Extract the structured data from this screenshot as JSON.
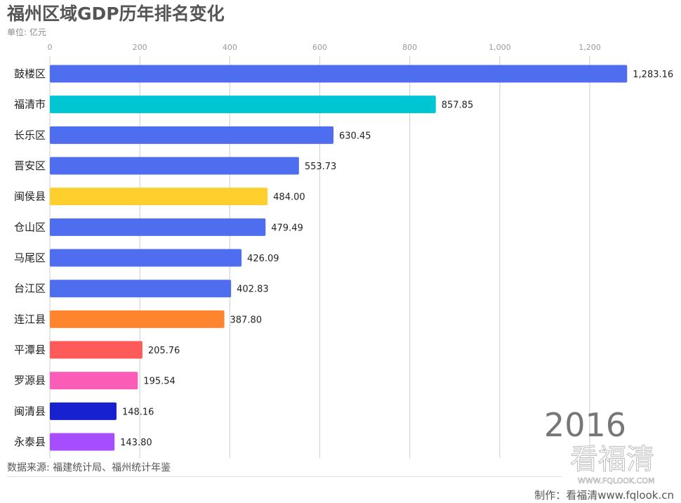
{
  "title": "福州区域GDP历年排名变化",
  "unit": "单位: 亿元",
  "year": "2016",
  "source": "数据来源: 福建统计局、福州统计年鉴",
  "credit": "制作：看福清www.fqlook.cn",
  "logo": {
    "text": "看福清",
    "url": "WWW.FQLOOK.COM"
  },
  "chart_data": {
    "type": "bar",
    "orientation": "horizontal",
    "categories": [
      "鼓楼区",
      "福清市",
      "长乐区",
      "晋安区",
      "闽侯县",
      "仓山区",
      "马尾区",
      "台江区",
      "连江县",
      "平潭县",
      "罗源县",
      "闽清县",
      "永泰县"
    ],
    "values": [
      1283.16,
      857.85,
      630.45,
      553.73,
      484.0,
      479.49,
      426.09,
      402.83,
      387.8,
      205.76,
      195.54,
      148.16,
      143.8
    ],
    "value_labels": [
      "1,283.16",
      "857.85",
      "630.45",
      "553.73",
      "484.00",
      "479.49",
      "426.09",
      "402.83",
      "387.80",
      "205.76",
      "195.54",
      "148.16",
      "143.80"
    ],
    "colors": [
      "#4f6eef",
      "#00c6d3",
      "#4f6eef",
      "#4f6eef",
      "#ffd02d",
      "#4f6eef",
      "#4f6eef",
      "#4f6eef",
      "#ff842e",
      "#ff5a5a",
      "#fb5cb8",
      "#1721cf",
      "#a64dff"
    ],
    "xticks": [
      0,
      200,
      400,
      600,
      800,
      1000,
      1200
    ],
    "xtick_labels": [
      "0",
      "200",
      "400",
      "600",
      "800",
      "1,000",
      "1,200"
    ],
    "xlim": [
      0,
      1200
    ],
    "axis_position": "top",
    "grid": true
  }
}
